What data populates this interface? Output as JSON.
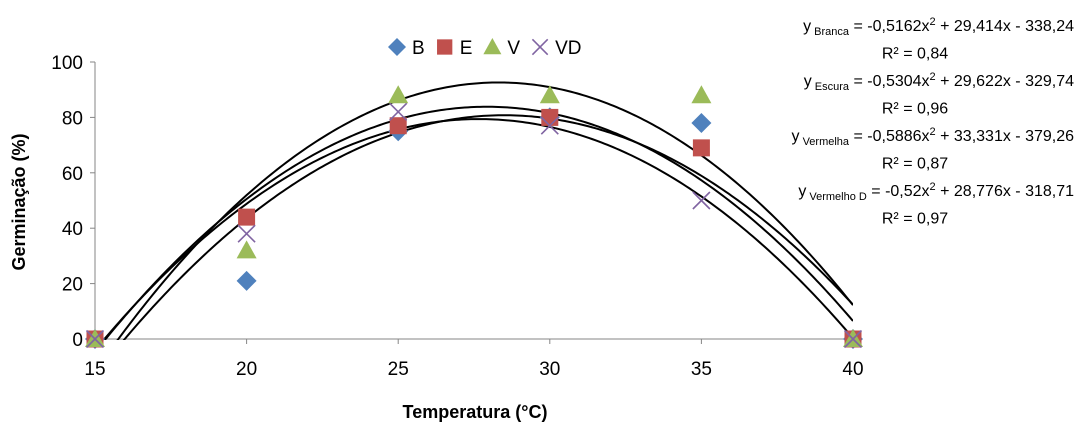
{
  "chart_data": {
    "type": "scatter",
    "xlabel": "Temperatura (°C)",
    "ylabel": "Germinação (%)",
    "xlim": [
      15,
      40
    ],
    "ylim": [
      0,
      100
    ],
    "x_ticks": [
      "15",
      "20",
      "25",
      "30",
      "35",
      "40"
    ],
    "y_ticks": [
      "0",
      "20",
      "40",
      "60",
      "80",
      "100"
    ],
    "grid": false,
    "legend_position": "top",
    "x": [
      15,
      20,
      25,
      30,
      35,
      40
    ],
    "series": [
      {
        "name": "B",
        "marker": "diamond",
        "color": "#4F81BD",
        "values": [
          0,
          21,
          75,
          80,
          78,
          0
        ],
        "fit": {
          "a": -0.5162,
          "b": 29.414,
          "c": -338.24
        },
        "eq_y": "y",
        "eq_sub": "Branca",
        "eq_rhs1": " = -0,5162x",
        "eq_sup": "2",
        "eq_rhs2": " + 29,414x - 338,24",
        "r2": "R² = 0,84"
      },
      {
        "name": "E",
        "marker": "square",
        "color": "#C0504D",
        "values": [
          0,
          44,
          77,
          80,
          69,
          0
        ],
        "fit": {
          "a": -0.5304,
          "b": 29.622,
          "c": -329.74
        },
        "eq_y": "y",
        "eq_sub": "Escura",
        "eq_rhs1": " = -0,5304x",
        "eq_sup": "2",
        "eq_rhs2": " + 29,622x - 329,74",
        "r2": "R² = 0,96"
      },
      {
        "name": "V",
        "marker": "triangle",
        "color": "#9BBB59",
        "values": [
          0,
          32,
          88,
          88,
          88,
          0
        ],
        "fit": {
          "a": -0.5886,
          "b": 33.331,
          "c": -379.26
        },
        "eq_y": "y",
        "eq_sub": "Vermelha",
        "eq_rhs1": " = -0,5886x",
        "eq_sup": "2",
        "eq_rhs2": " + 33,331x - 379,26",
        "r2": "R² = 0,87"
      },
      {
        "name": "VD",
        "marker": "x",
        "color": "#8064A2",
        "values": [
          0,
          38,
          82,
          77,
          50,
          0
        ],
        "fit": {
          "a": -0.52,
          "b": 28.776,
          "c": -318.71
        },
        "eq_y": "y",
        "eq_sub": "Vermelho D",
        "eq_rhs1": " = -0,52x",
        "eq_sup": "2",
        "eq_rhs2": " + 28,776x - 318,71",
        "r2": "R² = 0,97"
      }
    ]
  }
}
